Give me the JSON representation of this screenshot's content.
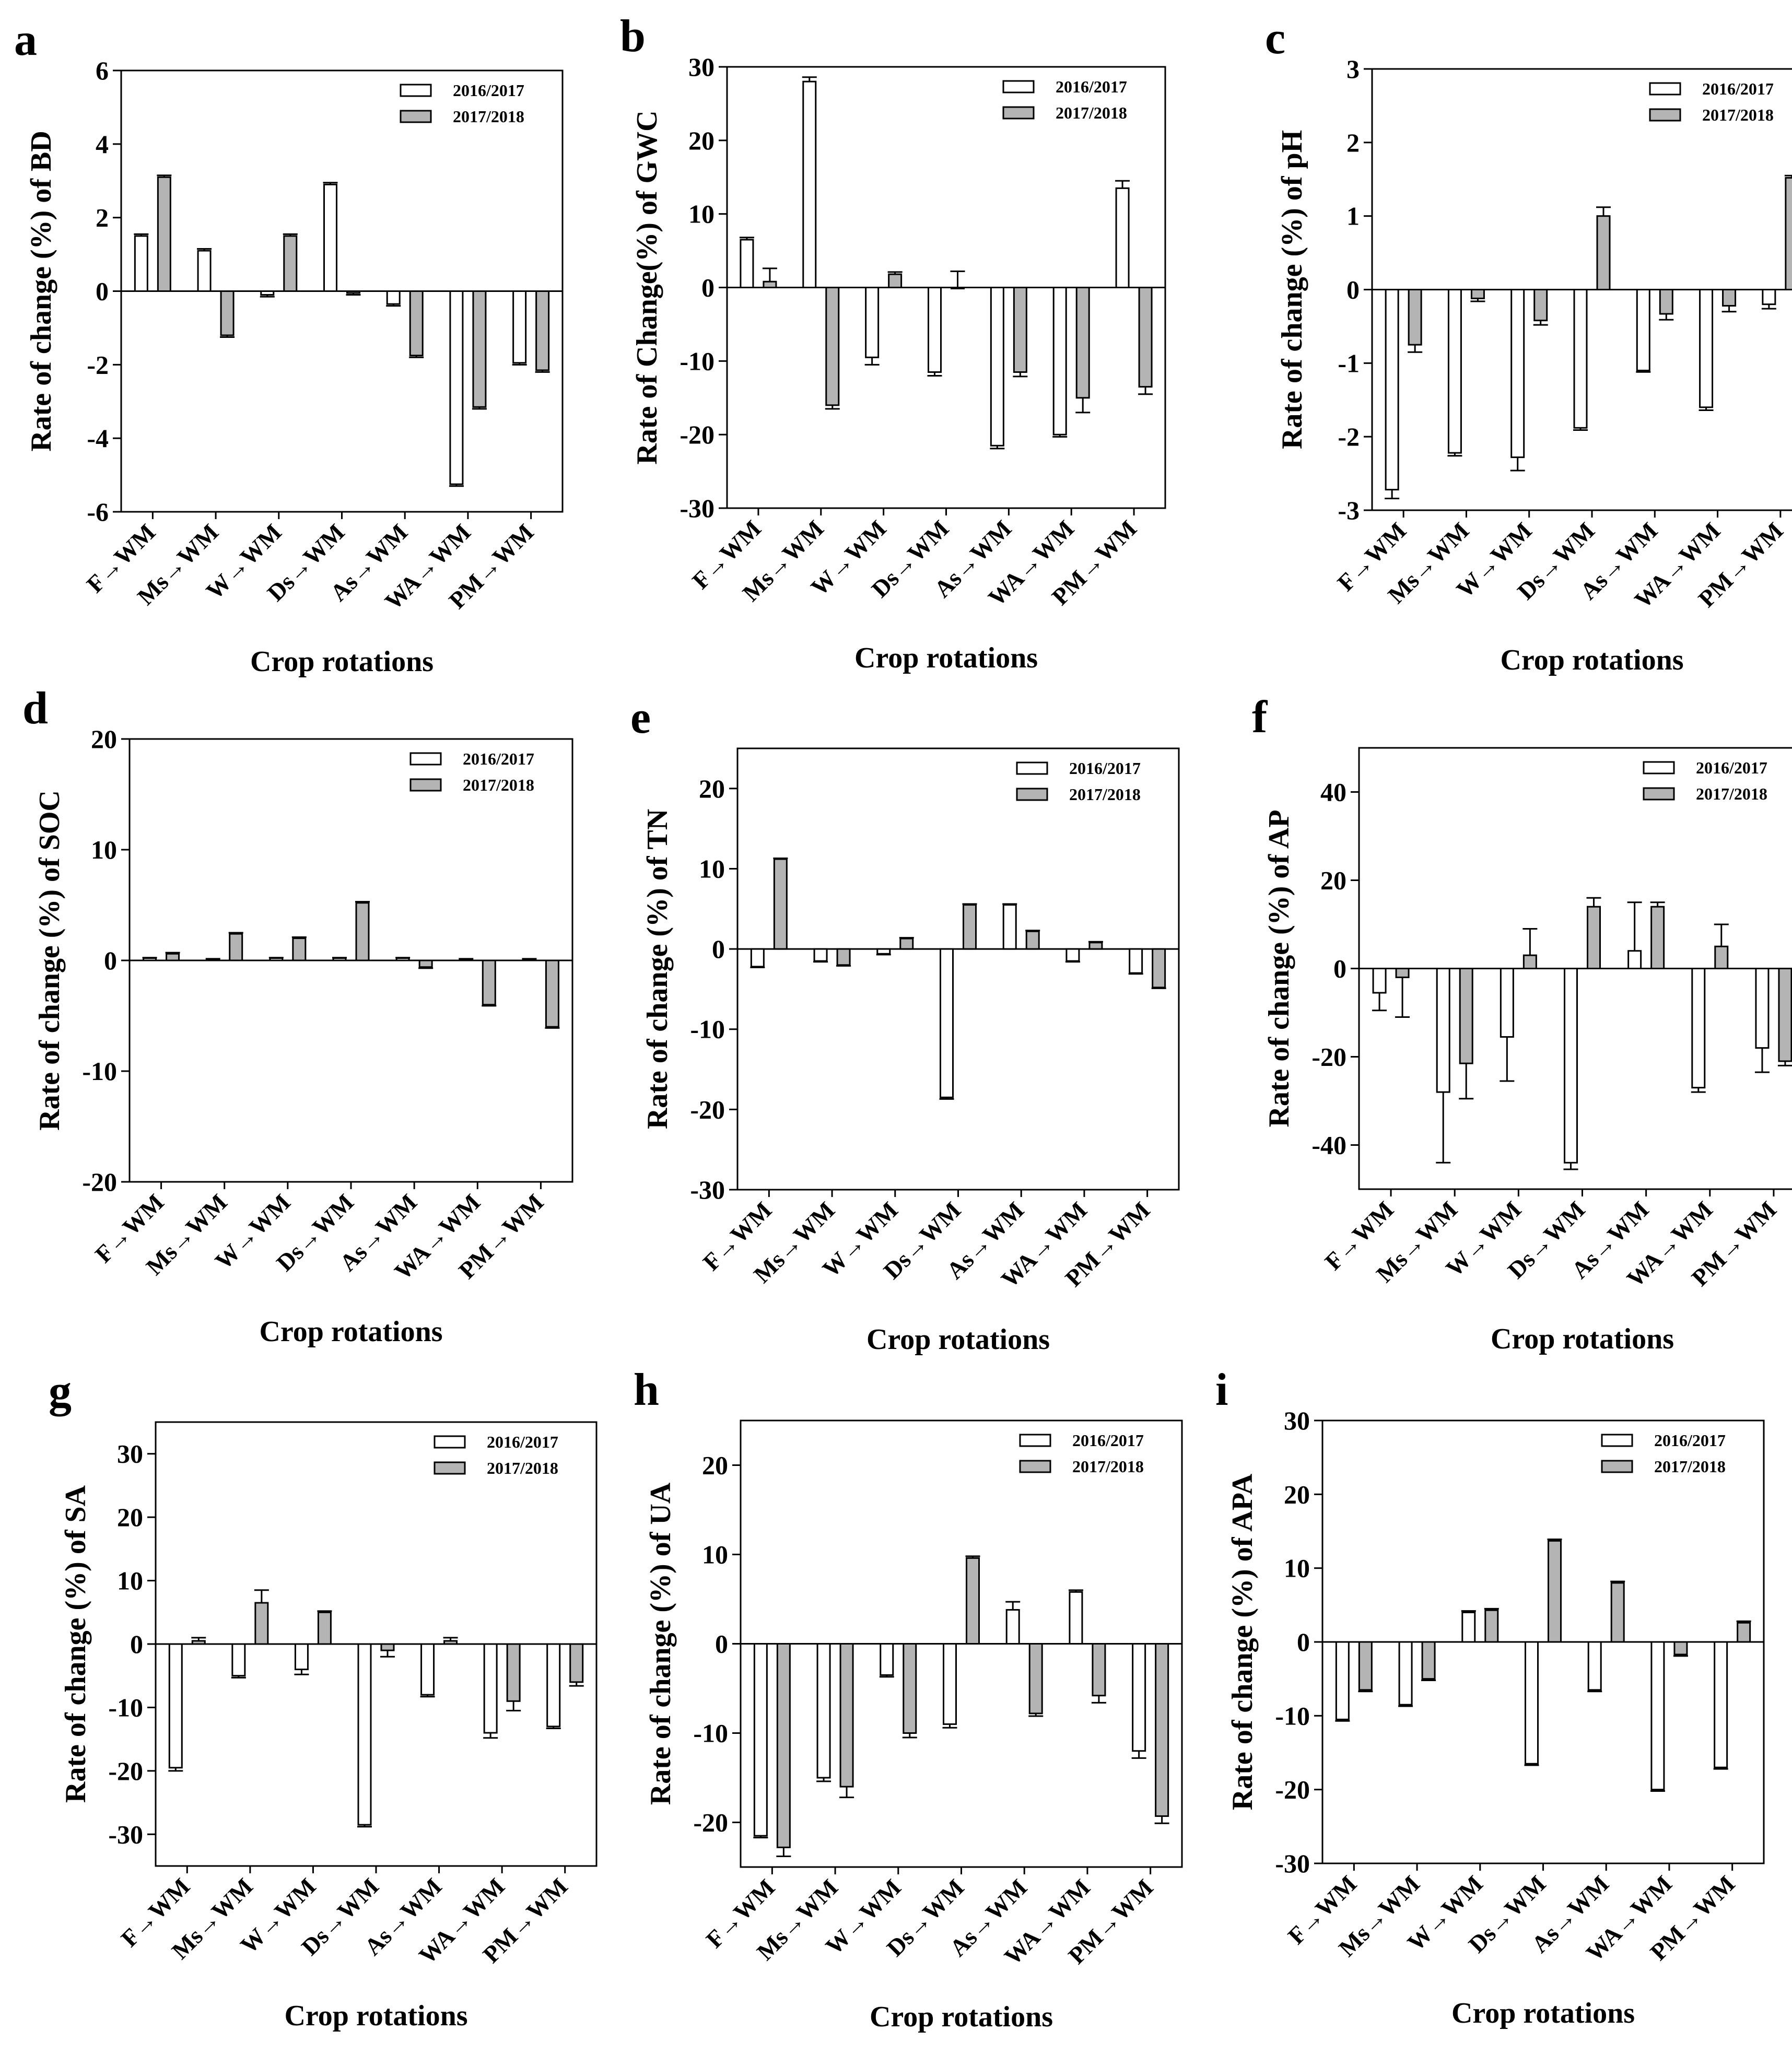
{
  "figure": {
    "xlabel": "Crop rotations",
    "series_names": [
      "2016/2017",
      "2017/2018"
    ],
    "colors": {
      "series_2016_2017": "#ffffff",
      "series_2017_2018": "#b4b4b4",
      "stroke": "#000000"
    }
  },
  "chart_data": [
    {
      "type": "bar",
      "panel": "a",
      "ylabel": "Rate of change (%) of BD",
      "xlabel": "Crop rotations",
      "categories": [
        "F→WM",
        "Ms→WM",
        "W→WM",
        "Ds→WM",
        "As→WM",
        "WA→WM",
        "PM→WM"
      ],
      "yticks": [
        6,
        4,
        2,
        0,
        -2,
        -4,
        -6
      ],
      "ylim": [
        -6,
        6
      ],
      "legend": "top-right",
      "series": [
        {
          "name": "2016/2017",
          "values": [
            1.5,
            1.1,
            -0.1,
            2.9,
            -0.35,
            -5.25,
            -1.95
          ],
          "errors": [
            0.05,
            0.05,
            0.05,
            0.05,
            0.05,
            0.05,
            0.05
          ]
        },
        {
          "name": "2017/2018",
          "values": [
            3.1,
            -1.2,
            1.5,
            -0.05,
            -1.75,
            -3.15,
            -2.15
          ],
          "errors": [
            0.05,
            0.05,
            0.05,
            0.05,
            0.05,
            0.05,
            0.05
          ]
        }
      ]
    },
    {
      "type": "bar",
      "panel": "b",
      "ylabel": "Rate of Change(%) of GWC",
      "xlabel": "Crop rotations",
      "categories": [
        "F→WM",
        "Ms→WM",
        "W→WM",
        "Ds→WM",
        "As→WM",
        "WA→WM",
        "PM→WM"
      ],
      "yticks": [
        30,
        20,
        10,
        0,
        -10,
        -20,
        -30
      ],
      "ylim": [
        -30,
        30
      ],
      "legend": "top-right",
      "series": [
        {
          "name": "2016/2017",
          "values": [
            6.5,
            28,
            -9.5,
            -11.5,
            -21.5,
            -20,
            13.5
          ],
          "errors": [
            0.3,
            0.6,
            1.0,
            0.5,
            0.4,
            0.3,
            1.0
          ]
        },
        {
          "name": "2017/2018",
          "values": [
            0.8,
            -16,
            1.8,
            0.0,
            -11.5,
            -15,
            -13.5
          ],
          "errors": [
            1.8,
            0.5,
            0.3,
            2.2,
            0.6,
            2.0,
            1.0
          ]
        }
      ]
    },
    {
      "type": "bar",
      "panel": "c",
      "ylabel": "Rate of change (%) of pH",
      "xlabel": "Crop rotations",
      "categories": [
        "F→WM",
        "Ms→WM",
        "W→WM",
        "Ds→WM",
        "As→WM",
        "WA→WM",
        "PM→WM"
      ],
      "yticks": [
        3,
        2,
        1,
        0,
        -1,
        -2,
        -3
      ],
      "ylim": [
        -3,
        3
      ],
      "legend": "top-right",
      "series": [
        {
          "name": "2016/2017",
          "values": [
            -2.72,
            -2.22,
            -2.28,
            -1.88,
            -1.1,
            -1.6,
            -0.2
          ],
          "errors": [
            0.12,
            0.04,
            0.18,
            0.03,
            0.02,
            0.04,
            0.06
          ]
        },
        {
          "name": "2017/2018",
          "values": [
            -0.75,
            -0.12,
            -0.42,
            1.0,
            -0.33,
            -0.22,
            1.52
          ],
          "errors": [
            0.1,
            0.04,
            0.06,
            0.12,
            0.08,
            0.08,
            0.03
          ]
        }
      ]
    },
    {
      "type": "bar",
      "panel": "d",
      "ylabel": "Rate of change (%) of SOC",
      "xlabel": "Crop rotations",
      "categories": [
        "F→WM",
        "Ms→WM",
        "W→WM",
        "Ds→WM",
        "As→WM",
        "WA→WM",
        "PM→WM"
      ],
      "yticks": [
        20,
        10,
        0,
        -10,
        -20
      ],
      "ylim": [
        -20,
        20
      ],
      "legend": "top-right",
      "series": [
        {
          "name": "2016/2017",
          "values": [
            0.2,
            0.1,
            0.2,
            0.2,
            0.2,
            0.1,
            0.1
          ],
          "errors": [
            0.05,
            0.05,
            0.05,
            0.05,
            0.05,
            0.05,
            0.05
          ]
        },
        {
          "name": "2017/2018",
          "values": [
            0.6,
            2.4,
            2.0,
            5.2,
            -0.6,
            -4.0,
            -6.0
          ],
          "errors": [
            0.1,
            0.1,
            0.1,
            0.1,
            0.1,
            0.1,
            0.1
          ]
        }
      ]
    },
    {
      "type": "bar",
      "panel": "e",
      "ylabel": "Rate of change (%) of TN",
      "xlabel": "Crop rotations",
      "categories": [
        "F→WM",
        "Ms→WM",
        "W→WM",
        "Ds→WM",
        "As→WM",
        "WA→WM",
        "PM→WM"
      ],
      "yticks": [
        20,
        10,
        0,
        -10,
        -20,
        -30
      ],
      "ylim": [
        -30,
        25
      ],
      "legend": "top-right",
      "series": [
        {
          "name": "2016/2017",
          "values": [
            -2.2,
            -1.5,
            -0.6,
            -18.5,
            5.5,
            -1.5,
            -3.0
          ],
          "errors": [
            0.1,
            0.1,
            0.1,
            0.2,
            0.1,
            0.1,
            0.1
          ]
        },
        {
          "name": "2017/2018",
          "values": [
            11.2,
            -2.0,
            1.3,
            5.5,
            2.2,
            0.8,
            -4.8
          ],
          "errors": [
            0.1,
            0.1,
            0.1,
            0.1,
            0.1,
            0.1,
            0.1
          ]
        }
      ]
    },
    {
      "type": "bar",
      "panel": "f",
      "ylabel": "Rate of change (%) of AP",
      "xlabel": "Crop rotations",
      "categories": [
        "F→WM",
        "Ms→WM",
        "W→WM",
        "Ds→WM",
        "As→WM",
        "WA→WM",
        "PM→WM"
      ],
      "yticks": [
        40,
        20,
        0,
        -20,
        -40
      ],
      "ylim": [
        -50,
        50
      ],
      "legend": "top-right",
      "series": [
        {
          "name": "2016/2017",
          "values": [
            -5.5,
            -28,
            -15.5,
            -44,
            4,
            -27,
            -18
          ],
          "errors": [
            4.0,
            16.0,
            10.0,
            1.5,
            11.0,
            1.0,
            5.5
          ]
        },
        {
          "name": "2017/2018",
          "values": [
            -2,
            -21.5,
            3,
            14,
            14,
            5,
            -21
          ],
          "errors": [
            9.0,
            8.0,
            6.0,
            2.0,
            1.0,
            5.0,
            1.0
          ]
        }
      ]
    },
    {
      "type": "bar",
      "panel": "g",
      "ylabel": "Rate of change (%) of SA",
      "xlabel": "Crop rotations",
      "categories": [
        "F→WM",
        "Ms→WM",
        "W→WM",
        "Ds→WM",
        "As→WM",
        "WA→WM",
        "PM→WM"
      ],
      "yticks": [
        30,
        20,
        10,
        0,
        -10,
        -20,
        -30
      ],
      "ylim": [
        -35,
        35
      ],
      "legend": "top-right",
      "series": [
        {
          "name": "2016/2017",
          "values": [
            -19.5,
            -5,
            -4,
            -28.5,
            -8,
            -14,
            -13
          ],
          "errors": [
            0.5,
            0.3,
            0.8,
            0.3,
            0.3,
            0.8,
            0.3
          ]
        },
        {
          "name": "2017/2018",
          "values": [
            0.5,
            6.5,
            5,
            -1,
            0.5,
            -9,
            -6
          ],
          "errors": [
            0.5,
            2.0,
            0.2,
            1.0,
            0.5,
            1.5,
            0.6
          ]
        }
      ]
    },
    {
      "type": "bar",
      "panel": "h",
      "ylabel": "Rate of change (%) of UA",
      "xlabel": "Crop rotations",
      "categories": [
        "F→WM",
        "Ms→WM",
        "W→WM",
        "Ds→WM",
        "As→WM",
        "WA→WM",
        "PM→WM"
      ],
      "yticks": [
        20,
        10,
        0,
        -10,
        -20
      ],
      "ylim": [
        -25,
        25
      ],
      "legend": "top-right",
      "series": [
        {
          "name": "2016/2017",
          "values": [
            -21.5,
            -15,
            -3.5,
            -9,
            3.8,
            5.8,
            -12
          ],
          "errors": [
            0.2,
            0.4,
            0.2,
            0.4,
            0.9,
            0.2,
            0.8
          ]
        },
        {
          "name": "2017/2018",
          "values": [
            -22.8,
            -16,
            -10,
            9.6,
            -7.8,
            -5.8,
            -19.3
          ],
          "errors": [
            1.0,
            1.2,
            0.5,
            0.2,
            0.3,
            0.8,
            0.8
          ]
        }
      ]
    },
    {
      "type": "bar",
      "panel": "i",
      "ylabel": "Rate of change (%) of APA",
      "xlabel": "Crop rotations",
      "categories": [
        "F→WM",
        "Ms→WM",
        "W→WM",
        "Ds→WM",
        "As→WM",
        "WA→WM",
        "PM→WM"
      ],
      "yticks": [
        30,
        20,
        10,
        0,
        -10,
        -20,
        -30
      ],
      "ylim": [
        -30,
        30
      ],
      "legend": "top-right",
      "series": [
        {
          "name": "2016/2017",
          "values": [
            -10.5,
            -8.5,
            4,
            -16.5,
            -6.5,
            -20,
            -17
          ],
          "errors": [
            0.2,
            0.2,
            0.2,
            0.2,
            0.2,
            0.2,
            0.2
          ]
        },
        {
          "name": "2017/2018",
          "values": [
            -6.5,
            -5,
            4.3,
            13.7,
            8,
            -1.7,
            2.6
          ],
          "errors": [
            0.2,
            0.2,
            0.2,
            0.2,
            0.2,
            0.2,
            0.2
          ]
        }
      ]
    }
  ]
}
